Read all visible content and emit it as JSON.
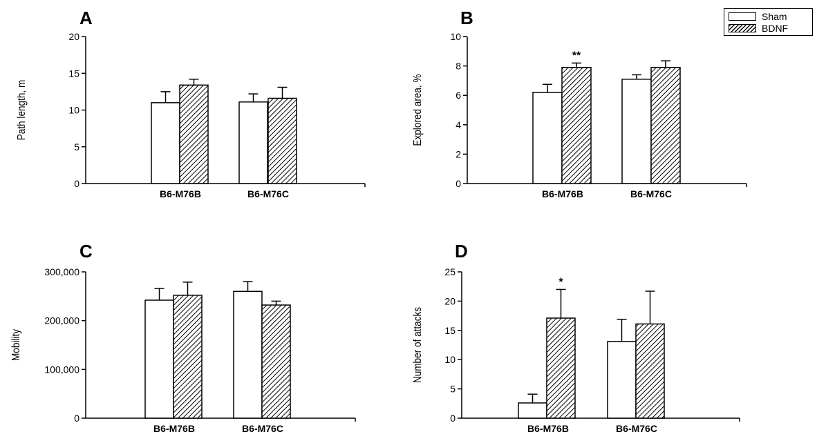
{
  "chart_data": [
    {
      "type": "bar",
      "panel_label": "A",
      "categories": [
        "B6-M76B",
        "B6-M76C"
      ],
      "series": [
        {
          "name": "Sham",
          "values": [
            11.0,
            11.1
          ],
          "errors": [
            1.5,
            1.1
          ]
        },
        {
          "name": "BDNF",
          "values": [
            13.4,
            11.6
          ],
          "errors": [
            0.8,
            1.5
          ]
        }
      ],
      "ylabel": "Path length, m",
      "ylim": [
        0,
        20
      ],
      "yticks": [
        0,
        5,
        10,
        15,
        20
      ],
      "ytick_labels": [
        "0",
        "5",
        "10",
        "15",
        "20"
      ],
      "significance": [
        "",
        ""
      ]
    },
    {
      "type": "bar",
      "panel_label": "B",
      "categories": [
        "B6-M76B",
        "B6-M76C"
      ],
      "series": [
        {
          "name": "Sham",
          "values": [
            6.2,
            7.1
          ],
          "errors": [
            0.55,
            0.3
          ]
        },
        {
          "name": "BDNF",
          "values": [
            7.9,
            7.9
          ],
          "errors": [
            0.3,
            0.45
          ]
        }
      ],
      "ylabel": "Explored area, %",
      "ylim": [
        0,
        10
      ],
      "yticks": [
        0,
        2,
        4,
        6,
        8,
        10
      ],
      "ytick_labels": [
        "0",
        "2",
        "4",
        "6",
        "8",
        "10"
      ],
      "significance": [
        "**",
        ""
      ]
    },
    {
      "type": "bar",
      "panel_label": "C",
      "categories": [
        "B6-M76B",
        "B6-M76C"
      ],
      "series": [
        {
          "name": "Sham",
          "values": [
            242000,
            260000
          ],
          "errors": [
            24000,
            20000
          ]
        },
        {
          "name": "BDNF",
          "values": [
            252000,
            232000
          ],
          "errors": [
            27000,
            8000
          ]
        }
      ],
      "ylabel": "Mobility",
      "ylim": [
        0,
        300000
      ],
      "yticks": [
        0,
        100000,
        200000,
        300000
      ],
      "ytick_labels": [
        "0",
        "100,000",
        "200,000",
        "300,000"
      ],
      "significance": [
        "",
        ""
      ]
    },
    {
      "type": "bar",
      "panel_label": "D",
      "categories": [
        "B6-M76B",
        "B6-M76C"
      ],
      "series": [
        {
          "name": "Sham",
          "values": [
            2.6,
            13.1
          ],
          "errors": [
            1.5,
            3.8
          ]
        },
        {
          "name": "BDNF",
          "values": [
            17.1,
            16.1
          ],
          "errors": [
            4.9,
            5.6
          ]
        }
      ],
      "ylabel": "Number of attacks",
      "ylim": [
        0,
        25
      ],
      "yticks": [
        0,
        5,
        10,
        15,
        20,
        25
      ],
      "ytick_labels": [
        "0",
        "5",
        "10",
        "15",
        "20",
        "25"
      ],
      "significance": [
        "*",
        ""
      ]
    }
  ],
  "legend": {
    "items": [
      {
        "name": "Sham"
      },
      {
        "name": "BDNF"
      }
    ]
  }
}
